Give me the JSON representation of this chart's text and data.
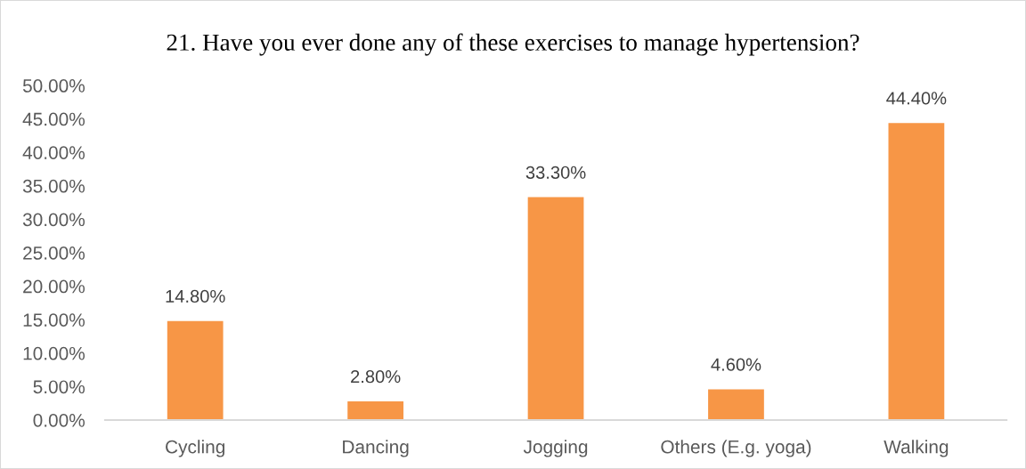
{
  "chart_data": {
    "type": "bar",
    "title": "21. Have you ever done any of these exercises to manage hypertension?",
    "categories": [
      "Cycling",
      "Dancing",
      "Jogging",
      "Others (E.g. yoga)",
      "Walking"
    ],
    "values": [
      14.8,
      2.8,
      33.3,
      4.6,
      44.4
    ],
    "value_labels": [
      "14.80%",
      "2.80%",
      "33.30%",
      "4.60%",
      "44.40%"
    ],
    "color": "#f79646",
    "ylim": [
      0,
      50
    ],
    "yticks": [
      {
        "value": 0,
        "label": "0.00%"
      },
      {
        "value": 5,
        "label": "5.00%"
      },
      {
        "value": 10,
        "label": "10.00%"
      },
      {
        "value": 15,
        "label": "15.00%"
      },
      {
        "value": 20,
        "label": "20.00%"
      },
      {
        "value": 25,
        "label": "25.00%"
      },
      {
        "value": 30,
        "label": "30.00%"
      },
      {
        "value": 35,
        "label": "35.00%"
      },
      {
        "value": 40,
        "label": "40.00%"
      },
      {
        "value": 45,
        "label": "45.00%"
      },
      {
        "value": 50,
        "label": "50.00%"
      }
    ],
    "grid": false
  }
}
